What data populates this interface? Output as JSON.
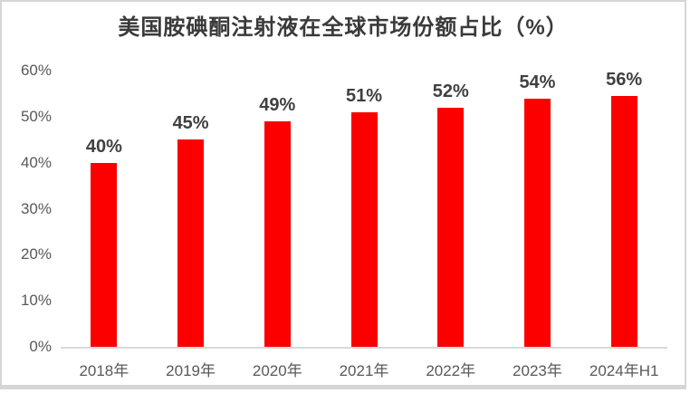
{
  "chart_data": {
    "type": "bar",
    "title": "美国胺碘酮注射液在全球市场份额占比（%）",
    "categories": [
      "2018年",
      "2019年",
      "2020年",
      "2021年",
      "2022年",
      "2023年",
      "2024年H1"
    ],
    "values": [
      40,
      45,
      49,
      51,
      52,
      54,
      56
    ],
    "data_labels": [
      "40%",
      "45%",
      "49%",
      "51%",
      "52%",
      "54%",
      "56%"
    ],
    "xlabel": "",
    "ylabel": "",
    "ylim": [
      0,
      60
    ],
    "y_tick_interval": 10,
    "y_tick_labels": [
      "60%",
      "50%",
      "40%",
      "30%",
      "20%",
      "10%",
      "0%"
    ],
    "grid": false,
    "legend_position": "none",
    "colors": {
      "bar": "#fc0000",
      "title_text": "#3a3a3a",
      "data_label_text": "#404040",
      "axis_label_text": "#595959",
      "baseline": "#d9d9d9",
      "frame_border": "#d6d6d6",
      "background": "#ffffff"
    }
  }
}
